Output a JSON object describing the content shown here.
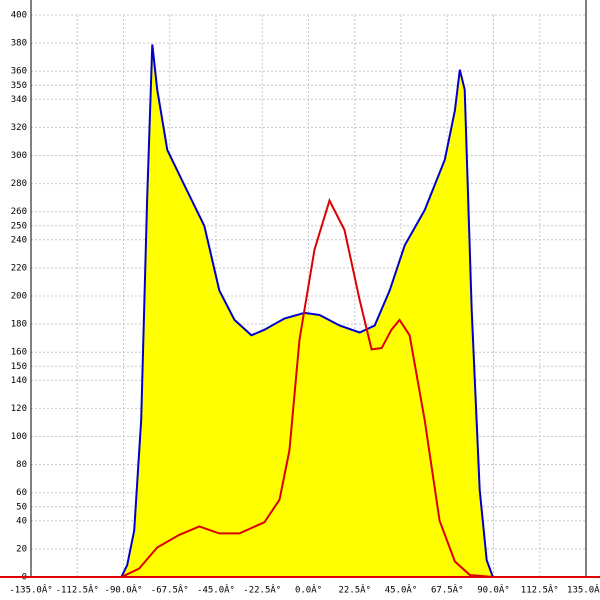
{
  "chart_data": {
    "type": "area-line",
    "x_series": [
      -91,
      -88.2,
      -84.8,
      -81.4,
      -78.5,
      -76,
      -73.6,
      -68.7,
      -60.4,
      -50.7,
      -43.4,
      -36,
      -27.8,
      -21.4,
      -11.7,
      -2,
      5.4,
      15.1,
      24.9,
      32.2,
      39.5,
      46.8,
      56.5,
      66.3,
      71.2,
      73.6,
      76,
      79.4,
      83.3,
      86.7,
      89.7
    ],
    "x_line": [
      -91,
      -82.4,
      -73.6,
      -62.9,
      -53.1,
      -43.4,
      -33.6,
      -21.4,
      -14.1,
      -9.3,
      -4.4,
      2.9,
      10.2,
      17.5,
      24.9,
      30.7,
      35.6,
      40.4,
      44.3,
      49.2,
      56.5,
      63.8,
      71.2,
      78.5,
      89.7
    ],
    "series": [
      {
        "color": "#0000cc",
        "fill": "#ffff00",
        "values": [
          0,
          8.5,
          33,
          112,
          268,
          379,
          347,
          304,
          279,
          250,
          204,
          183,
          172,
          176,
          184,
          188,
          186.5,
          179,
          174,
          179,
          204,
          236,
          261,
          297,
          332,
          361,
          347,
          190,
          62,
          12,
          0
        ]
      },
      {
        "color": "#dd0000",
        "values": [
          0,
          6,
          21,
          30,
          36,
          31,
          31,
          39,
          55,
          90,
          169,
          233,
          268,
          247,
          197,
          162,
          163,
          176,
          183,
          172,
          112,
          40,
          11,
          1.4,
          0
        ]
      }
    ],
    "xlim": [
      -135,
      135
    ],
    "xticks": [
      {
        "value": -135,
        "label": "-135.0Â°"
      },
      {
        "value": -112.5,
        "label": "-112.5Â°"
      },
      {
        "value": -90,
        "label": "-90.0Â°"
      },
      {
        "value": -67.5,
        "label": "-67.5Â°"
      },
      {
        "value": -45,
        "label": "-45.0Â°"
      },
      {
        "value": -22.5,
        "label": "-22.5Â°"
      },
      {
        "value": 0,
        "label": "0.0Â°"
      },
      {
        "value": 22.5,
        "label": "22.5Â°"
      },
      {
        "value": 45,
        "label": "45.0Â°"
      },
      {
        "value": 67.5,
        "label": "67.5Â°"
      },
      {
        "value": 90,
        "label": "90.0Â°"
      },
      {
        "value": 112.5,
        "label": "112.5Â°"
      },
      {
        "value": 135,
        "label": "135.0Â°"
      }
    ],
    "ylim": [
      0,
      400
    ],
    "yticks": [
      0,
      20,
      40,
      50,
      60,
      80,
      100,
      120,
      140,
      150,
      160,
      180,
      200,
      220,
      240,
      250,
      260,
      280,
      300,
      320,
      340,
      350,
      360,
      380,
      400
    ],
    "grid": true
  }
}
